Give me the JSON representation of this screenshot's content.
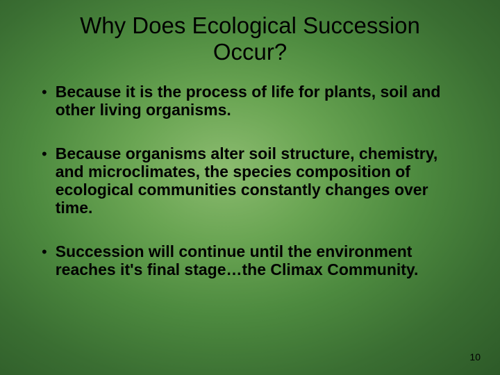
{
  "slide": {
    "title": "Why Does Ecological Succession Occur?",
    "bullets": [
      "Because it is the process of life for plants, soil and other living organisms.",
      "Because organisms alter soil structure, chemistry, and microclimates, the species composition of ecological communities constantly changes over time.",
      "Succession will continue until the environment reaches it's final stage…the Climax Community."
    ],
    "page_number": "10",
    "background": {
      "type": "radial-gradient",
      "center_color": "#8bbb6f",
      "edge_color": "#2d5a28"
    },
    "title_fontsize": 33,
    "title_color": "#000000",
    "bullet_fontsize": 23,
    "bullet_weight": "bold",
    "bullet_color": "#000000",
    "page_number_fontsize": 14
  }
}
